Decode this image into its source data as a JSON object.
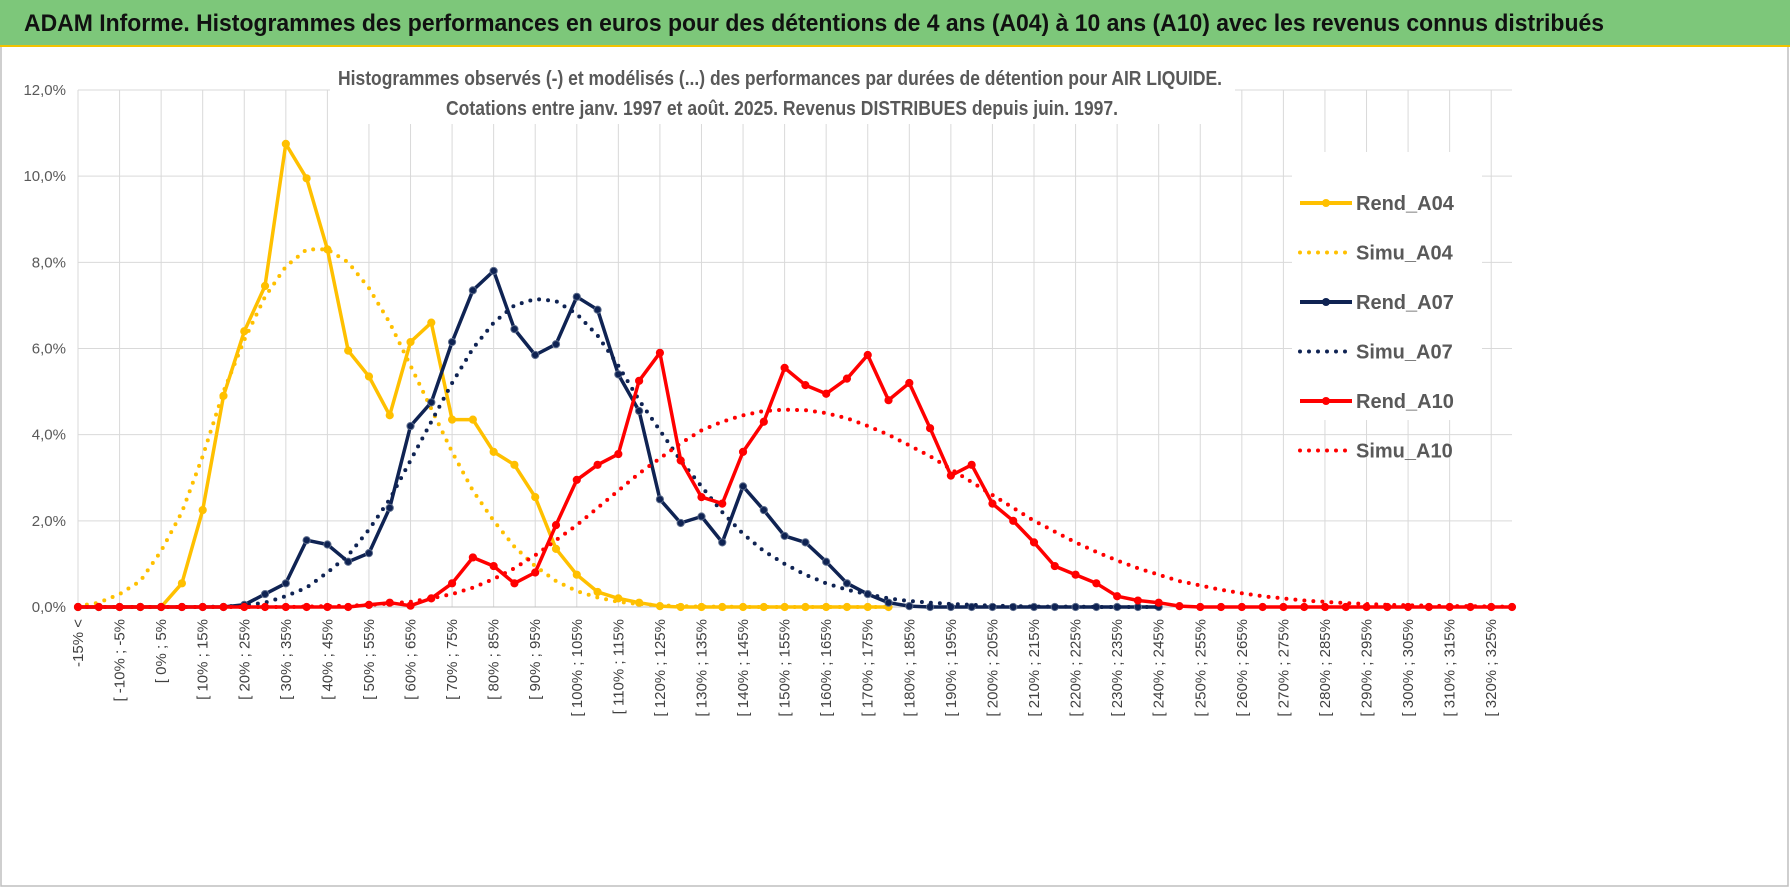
{
  "banner": "ADAM Informe. Histogrammes des performances en euros pour des détentions de 4 ans (A04) à 10 ans (A10) avec les revenus connus distribués",
  "chart_data": {
    "type": "line",
    "title": "Histogrammes observés (-) et modélisés (...) des performances par durées de détention pour AIR LIQUIDE.",
    "subtitle": "Cotations entre janv. 1997 et août. 2025. Revenus DISTRIBUES depuis juin. 1997.",
    "categories": [
      "-15% <",
      null,
      "[ -10% ; -5%",
      null,
      "[ 0% ; 5%",
      null,
      "[ 10% ; 15%",
      null,
      "[ 20% ; 25%",
      null,
      "[ 30% ; 35%",
      null,
      "[ 40% ; 45%",
      null,
      "[ 50% ; 55%",
      null,
      "[ 60% ; 65%",
      null,
      "[ 70% ; 75%",
      null,
      "[ 80% ; 85%",
      null,
      "[ 90% ; 95%",
      null,
      "[ 100% ; 105%",
      null,
      "[ 110% ; 115%",
      null,
      "[ 120% ; 125%",
      null,
      "[ 130% ; 135%",
      null,
      "[ 140% ; 145%",
      null,
      "[ 150% ; 155%",
      null,
      "[ 160% ; 165%",
      null,
      "[ 170% ; 175%",
      null,
      "[ 180% ; 185%",
      null,
      "[ 190% ; 195%",
      null,
      "[ 200% ; 205%",
      null,
      "[ 210% ; 215%",
      null,
      "[ 220% ; 225%",
      null,
      "[ 230% ; 235%",
      null,
      "[ 240% ; 245%",
      null,
      "[ 250% ; 255%",
      null,
      "[ 260% ; 265%",
      null,
      "[ 270% ; 275%",
      null,
      "[ 280% ; 285%",
      null,
      "[ 290% ; 295%",
      null,
      "[ 300% ; 305%",
      null,
      "[ 310% ; 315%",
      null,
      "[ 320% ; 325%",
      null
    ],
    "ylim": [
      0,
      12
    ],
    "yticks": [
      {
        "value": 0,
        "label": "0,0%"
      },
      {
        "value": 2,
        "label": "2,0%"
      },
      {
        "value": 4,
        "label": "4,0%"
      },
      {
        "value": 6,
        "label": "6,0%"
      },
      {
        "value": 8,
        "label": "8,0%"
      },
      {
        "value": 10,
        "label": "10,0%"
      },
      {
        "value": 12,
        "label": "12,0%"
      }
    ],
    "grid": true,
    "legend": "right",
    "series": [
      {
        "name": "Rend_A04",
        "color": "#ffc000",
        "style": "solid",
        "marker": true,
        "values": [
          0,
          0,
          0,
          0,
          0,
          0.55,
          2.25,
          4.9,
          6.4,
          7.45,
          10.75,
          9.95,
          8.3,
          5.95,
          5.35,
          4.45,
          6.15,
          6.6,
          4.35,
          4.35,
          3.6,
          3.3,
          2.55,
          1.35,
          0.75,
          0.35,
          0.2,
          0.1,
          0.02,
          0,
          0,
          0,
          0,
          0,
          0,
          0,
          0,
          0,
          0,
          0,
          null,
          null,
          null,
          null,
          null,
          null,
          null,
          null,
          null,
          null,
          null,
          null,
          null,
          null,
          null,
          null,
          null,
          null,
          null,
          null,
          null,
          null,
          null,
          null,
          null,
          null,
          null,
          null,
          null,
          null
        ]
      },
      {
        "name": "Simu_A04",
        "color": "#ffc000",
        "style": "dotted",
        "marker": false,
        "values": [
          0.02,
          0.1,
          0.3,
          0.6,
          1.3,
          2.2,
          3.5,
          5,
          6.2,
          7.2,
          7.9,
          8.3,
          8.3,
          8,
          7.4,
          6.6,
          5.6,
          4.6,
          3.6,
          2.7,
          2,
          1.4,
          0.95,
          0.6,
          0.37,
          0.22,
          0.12,
          0.07,
          0.04,
          0.02,
          0.01,
          0.01,
          0,
          0,
          0,
          0,
          0,
          0,
          0,
          0,
          null,
          null,
          null,
          null,
          null,
          null,
          null,
          null,
          null,
          null,
          null,
          null,
          null,
          null,
          null,
          null,
          null,
          null,
          null,
          null,
          null,
          null,
          null,
          null,
          null,
          null,
          null,
          null,
          null,
          null
        ]
      },
      {
        "name": "Rend_A07",
        "color": "#0f2353",
        "style": "solid",
        "marker": true,
        "values": [
          0,
          0,
          0,
          0,
          0,
          0,
          0,
          0,
          0.05,
          0.3,
          0.55,
          1.55,
          1.45,
          1.05,
          1.25,
          2.3,
          4.2,
          4.75,
          6.15,
          7.35,
          7.8,
          6.45,
          5.85,
          6.1,
          7.2,
          6.9,
          5.4,
          4.55,
          2.5,
          1.95,
          2.1,
          1.5,
          2.8,
          2.25,
          1.65,
          1.5,
          1.05,
          0.55,
          0.3,
          0.1,
          0.02,
          0,
          0,
          0,
          0,
          0,
          0,
          0,
          0,
          0,
          0,
          0,
          0,
          null,
          null,
          null,
          null,
          null,
          null,
          null,
          null,
          null,
          null,
          null,
          null,
          null,
          null,
          null,
          null,
          null
        ]
      },
      {
        "name": "Simu_A07",
        "color": "#0f2353",
        "style": "dotted",
        "marker": false,
        "values": [
          0,
          0,
          0,
          0,
          0,
          0,
          0,
          0.01,
          0.04,
          0.1,
          0.25,
          0.45,
          0.8,
          1.2,
          1.8,
          2.5,
          3.4,
          4.3,
          5.2,
          6.0,
          6.6,
          7.0,
          7.15,
          7.1,
          6.8,
          6.3,
          5.6,
          4.8,
          4.1,
          3.4,
          2.8,
          2.2,
          1.7,
          1.3,
          1.0,
          0.75,
          0.55,
          0.4,
          0.3,
          0.2,
          0.14,
          0.1,
          0.07,
          0.05,
          0.03,
          0.02,
          0.01,
          0.01,
          0.01,
          0,
          0,
          0,
          0,
          null,
          null,
          null,
          null,
          null,
          null,
          null,
          null,
          null,
          null,
          null,
          null,
          null,
          null,
          null,
          null,
          null
        ]
      },
      {
        "name": "Rend_A10",
        "color": "#ff0000",
        "style": "solid",
        "marker": true,
        "values": [
          0,
          0,
          0,
          0,
          0,
          0,
          0,
          0,
          0,
          0,
          0,
          0,
          0,
          0,
          0.05,
          0.1,
          0.03,
          0.2,
          0.55,
          1.15,
          0.95,
          0.55,
          0.8,
          1.9,
          2.95,
          3.3,
          3.55,
          5.25,
          5.9,
          3.4,
          2.55,
          2.4,
          3.6,
          4.3,
          5.55,
          5.15,
          4.95,
          5.3,
          5.85,
          4.8,
          5.2,
          4.15,
          3.05,
          3.3,
          2.4,
          2.0,
          1.5,
          0.95,
          0.75,
          0.55,
          0.25,
          0.15,
          0.1,
          0.02,
          0,
          0,
          0,
          0,
          0,
          0,
          0,
          0,
          0,
          0,
          0,
          0,
          0,
          0,
          0,
          0
        ]
      },
      {
        "name": "Simu_A10",
        "color": "#ff0000",
        "style": "dotted",
        "marker": false,
        "values": [
          0,
          0,
          0,
          0,
          0,
          0,
          0,
          0,
          0,
          0,
          0,
          0.01,
          0.02,
          0.03,
          0.05,
          0.08,
          0.12,
          0.2,
          0.3,
          0.45,
          0.65,
          0.9,
          1.2,
          1.55,
          1.9,
          2.3,
          2.7,
          3.1,
          3.45,
          3.8,
          4.1,
          4.3,
          4.45,
          4.55,
          4.58,
          4.57,
          4.5,
          4.38,
          4.2,
          4.0,
          3.75,
          3.5,
          3.2,
          2.9,
          2.6,
          2.3,
          2.0,
          1.75,
          1.5,
          1.28,
          1.08,
          0.9,
          0.75,
          0.6,
          0.5,
          0.4,
          0.32,
          0.25,
          0.2,
          0.15,
          0.12,
          0.09,
          0.07,
          0.05,
          0.04,
          0.03,
          0.02,
          0.02,
          0.01,
          0.01
        ]
      }
    ]
  }
}
